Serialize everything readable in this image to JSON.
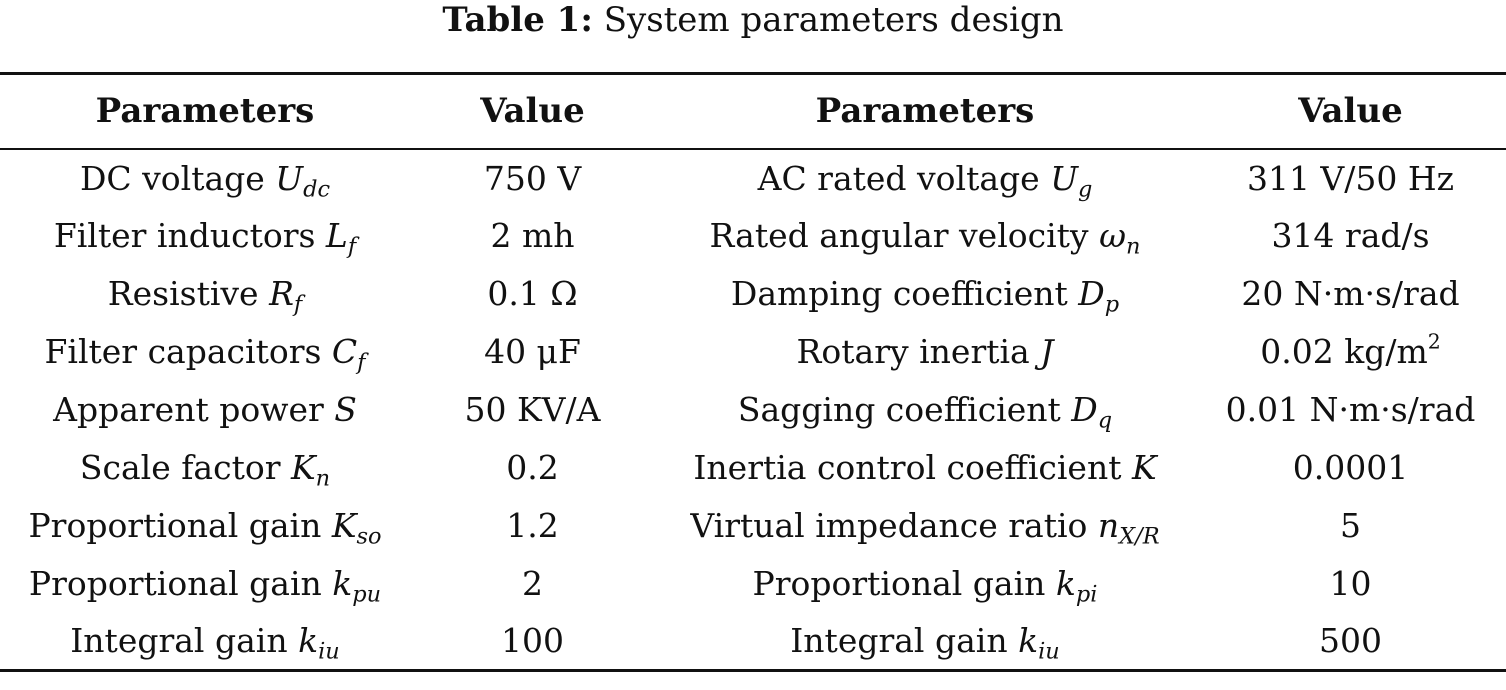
{
  "caption": {
    "label": "Table 1:",
    "text": "System parameters design"
  },
  "headers": [
    "Parameters",
    "Value",
    "Parameters",
    "Value"
  ],
  "rows": [
    {
      "p1": {
        "label": "DC voltage",
        "sym": "U",
        "sub": "dc"
      },
      "v1": {
        "text": "750 V",
        "sup": ""
      },
      "p2": {
        "label": "AC rated voltage",
        "sym": "U",
        "sub": "g"
      },
      "v2": {
        "text": "311 V/50 Hz",
        "sup": ""
      }
    },
    {
      "p1": {
        "label": "Filter inductors",
        "sym": "L",
        "sub": "f"
      },
      "v1": {
        "text": "2 mh",
        "sup": ""
      },
      "p2": {
        "label": "Rated angular velocity",
        "sym": "ω",
        "sub": "n"
      },
      "v2": {
        "text": "314 rad/s",
        "sup": ""
      }
    },
    {
      "p1": {
        "label": "Resistive",
        "sym": "R",
        "sub": "f"
      },
      "v1": {
        "text": "0.1 Ω",
        "sup": ""
      },
      "p2": {
        "label": "Damping coefficient",
        "sym": "D",
        "sub": "p"
      },
      "v2": {
        "text": "20 N·m·s/rad",
        "sup": ""
      }
    },
    {
      "p1": {
        "label": "Filter capacitors",
        "sym": "C",
        "sub": "f"
      },
      "v1": {
        "text": "40 μF",
        "sup": ""
      },
      "p2": {
        "label": "Rotary inertia",
        "sym": "J",
        "sub": ""
      },
      "v2": {
        "text": "0.02 kg/m",
        "sup": "2"
      }
    },
    {
      "p1": {
        "label": "Apparent power",
        "sym": "S",
        "sub": ""
      },
      "v1": {
        "text": "50 KV/A",
        "sup": ""
      },
      "p2": {
        "label": "Sagging coefficient",
        "sym": "D",
        "sub": "q"
      },
      "v2": {
        "text": "0.01 N·m·s/rad",
        "sup": ""
      }
    },
    {
      "p1": {
        "label": "Scale factor",
        "sym": "K",
        "sub": "n"
      },
      "v1": {
        "text": "0.2",
        "sup": ""
      },
      "p2": {
        "label": "Inertia control coefficient",
        "sym": "K",
        "sub": ""
      },
      "v2": {
        "text": "0.0001",
        "sup": ""
      }
    },
    {
      "p1": {
        "label": "Proportional gain",
        "sym": "K",
        "sub": "so"
      },
      "v1": {
        "text": "1.2",
        "sup": ""
      },
      "p2": {
        "label": "Virtual impedance ratio",
        "sym": "n",
        "sub": "X/R"
      },
      "v2": {
        "text": "5",
        "sup": ""
      }
    },
    {
      "p1": {
        "label": "Proportional gain",
        "sym": "k",
        "sub": "pu"
      },
      "v1": {
        "text": "2",
        "sup": ""
      },
      "p2": {
        "label": "Proportional gain",
        "sym": "k",
        "sub": "pi"
      },
      "v2": {
        "text": "10",
        "sup": ""
      }
    },
    {
      "p1": {
        "label": "Integral gain",
        "sym": "k",
        "sub": "iu"
      },
      "v1": {
        "text": "100",
        "sup": ""
      },
      "p2": {
        "label": "Integral gain",
        "sym": "k",
        "sub": "iu"
      },
      "v2": {
        "text": "500",
        "sup": ""
      }
    }
  ]
}
